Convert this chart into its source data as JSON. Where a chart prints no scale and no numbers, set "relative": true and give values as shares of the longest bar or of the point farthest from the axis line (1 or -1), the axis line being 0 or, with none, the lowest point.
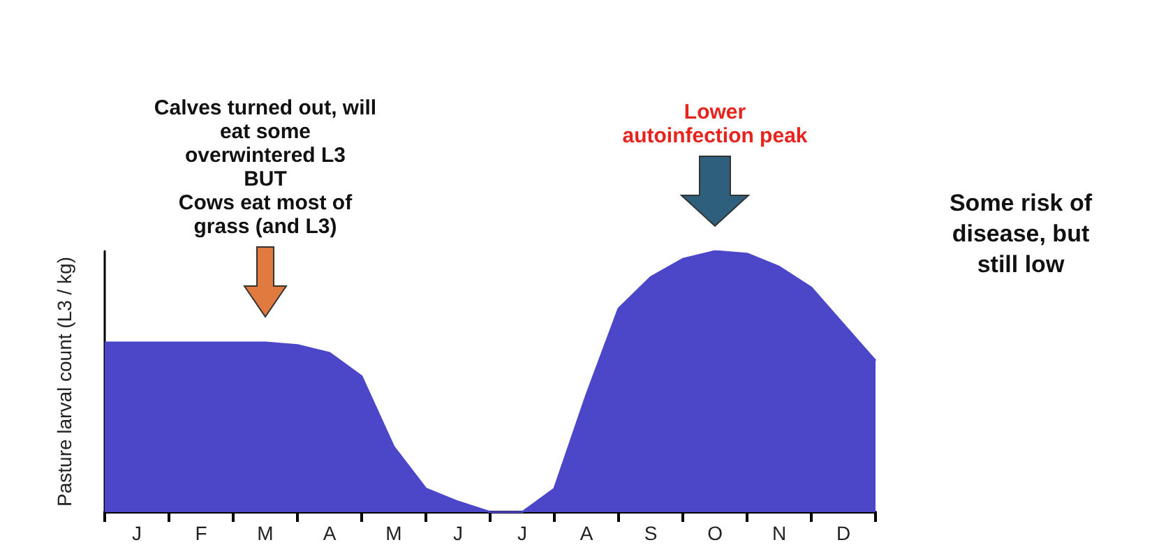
{
  "chart_data": {
    "type": "area",
    "relative": true,
    "ylabel": "Pasture larval count (L3 / kg)",
    "categories": [
      null,
      "J",
      null,
      "F",
      null,
      "M",
      null,
      "A",
      null,
      "M",
      null,
      "J",
      null,
      "J",
      null,
      "A",
      null,
      "S",
      null,
      "O",
      null,
      "N",
      null,
      "D",
      null
    ],
    "series": [
      {
        "color": "#4b47c8",
        "values": [
          0.65,
          0.65,
          0.65,
          0.65,
          0.65,
          0.65,
          0.64,
          0.61,
          0.52,
          0.25,
          0.09,
          0.04,
          0,
          0,
          0.09,
          0.45,
          0.78,
          0.9,
          0.97,
          1,
          0.99,
          0.94,
          0.86,
          0.72,
          0.58
        ]
      }
    ],
    "annotations": [
      "Calves turned out, will\neat some\noverwintered L3\nBUT\nCows eat most of\ngrass (and L3)",
      "Lower\nautoinfection peak",
      "Some risk of\ndisease, but\nstill low"
    ],
    "grid": false,
    "marker": "none"
  }
}
